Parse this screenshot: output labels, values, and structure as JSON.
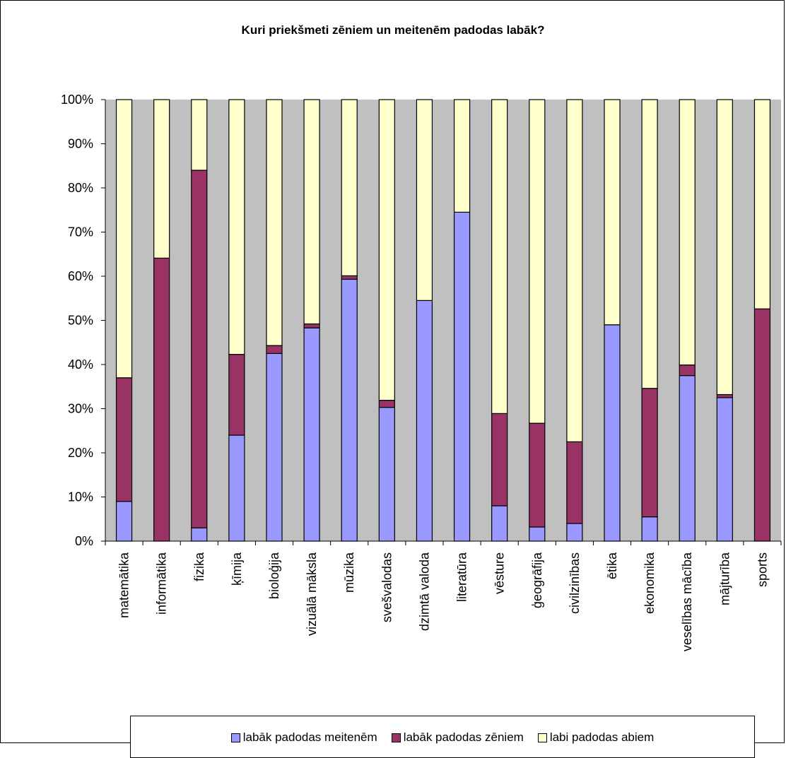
{
  "chart_data": {
    "type": "bar",
    "stacked": true,
    "percent": true,
    "title": "Kuri priekšmeti zēniem un meitenēm padodas labāk?",
    "xlabel": "",
    "ylabel": "",
    "ylim": [
      0,
      100
    ],
    "y_ticks": [
      "0%",
      "10%",
      "20%",
      "30%",
      "40%",
      "50%",
      "60%",
      "70%",
      "80%",
      "90%",
      "100%"
    ],
    "grid": false,
    "legend_position": "bottom",
    "plot_background": "#C0C0C0",
    "categories": [
      "matemātika",
      "informātika",
      "fizika",
      "ķīmija",
      "bioloģija",
      "vizuālā māksla",
      "mūzika",
      "svešvalodas",
      "dzimtā valoda",
      "literatūra",
      "vēsture",
      "ģeogrāfija",
      "civilzinības",
      "ētika",
      "ekonomika",
      "veselības mācība",
      "mājturība",
      "sports"
    ],
    "series": [
      {
        "name": "labāk padodas meitenēm",
        "color": "#9999FF",
        "values": [
          9,
          0,
          3,
          24,
          42.5,
          48.3,
          59.3,
          30.3,
          54.5,
          74.5,
          8,
          3.2,
          4,
          49,
          5.5,
          37.5,
          32.5,
          0
        ]
      },
      {
        "name": "labāk padodas zēniem",
        "color": "#993366",
        "values": [
          28,
          64.1,
          81,
          18.3,
          1.8,
          0.9,
          0.8,
          1.6,
          0,
          0,
          20.9,
          23.5,
          18.5,
          0,
          29.1,
          2.4,
          0.7,
          52.6
        ]
      },
      {
        "name": "labi padodas abiem",
        "color": "#FFFFCC",
        "values": [
          63,
          35.9,
          16,
          57.7,
          55.7,
          50.8,
          39.9,
          68.1,
          45.5,
          25.5,
          71.1,
          73.3,
          77.5,
          51,
          65.4,
          60.1,
          66.8,
          47.4
        ]
      }
    ]
  }
}
